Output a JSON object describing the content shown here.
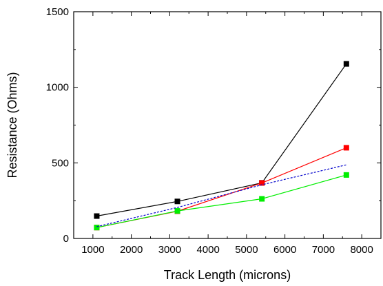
{
  "chart_data": {
    "type": "line",
    "xlabel": "Track Length (microns)",
    "ylabel": "Resistance (Ohms)",
    "xlim": [
      500,
      8500
    ],
    "ylim": [
      0,
      1500
    ],
    "xticks": [
      1000,
      2000,
      3000,
      4000,
      5000,
      6000,
      7000,
      8000
    ],
    "yticks": [
      0,
      500,
      1000,
      1500
    ],
    "legend": "none",
    "grid": false,
    "series": [
      {
        "color": "#000000",
        "style": "solid-square",
        "x": [
          1100,
          3200,
          5400,
          7600
        ],
        "y": [
          148,
          245,
          368,
          1155
        ]
      },
      {
        "color": "#ff0000",
        "style": "solid-square",
        "x": [
          1100,
          3200,
          5400,
          7600
        ],
        "y": [
          72,
          180,
          367,
          600
        ]
      },
      {
        "color": "#00ee00",
        "style": "solid-square",
        "x": [
          1100,
          3200,
          5400,
          7600
        ],
        "y": [
          72,
          182,
          262,
          420
        ]
      },
      {
        "color": "#0000cc",
        "style": "dashed",
        "x": [
          1100,
          3200,
          5400,
          7600
        ],
        "y": [
          78,
          205,
          355,
          487
        ]
      }
    ]
  }
}
